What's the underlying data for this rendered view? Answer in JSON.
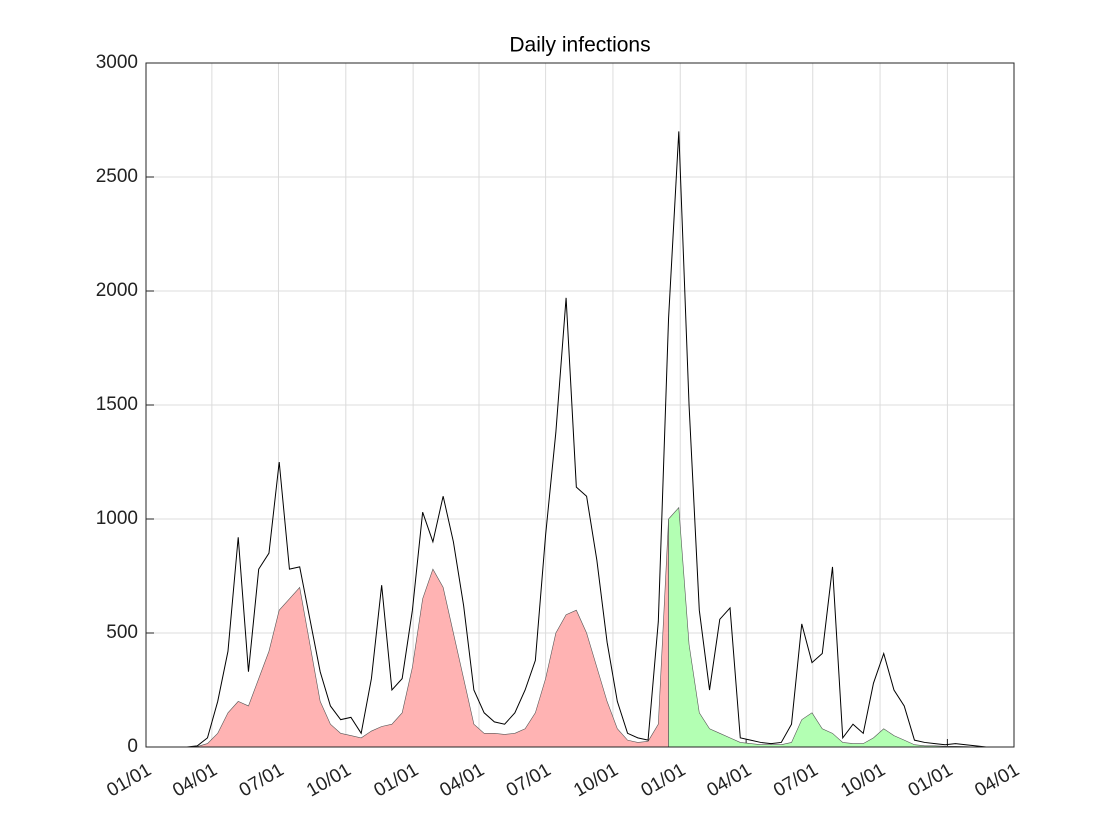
{
  "chart_data": {
    "type": "line",
    "title": "Daily infections",
    "x": [
      56,
      70,
      84,
      98,
      112,
      126,
      140,
      154,
      168,
      182,
      196,
      210,
      224,
      238,
      252,
      266,
      280,
      294,
      308,
      322,
      336,
      350,
      364,
      378,
      392,
      406,
      420,
      434,
      448,
      462,
      476,
      490,
      504,
      518,
      532,
      546,
      560,
      574,
      588,
      602,
      616,
      630,
      644,
      658,
      672,
      686,
      700,
      714,
      728,
      742,
      756,
      770,
      784,
      798,
      812,
      826,
      840,
      854,
      868,
      882,
      896,
      910,
      924,
      938,
      952,
      966,
      980,
      994,
      1008,
      1022,
      1036,
      1050,
      1064,
      1078,
      1092,
      1106,
      1120,
      1134,
      1148,
      1162,
      1176
    ],
    "series": [
      {
        "color": "#000000",
        "fill": false,
        "values": [
          0,
          5,
          40,
          200,
          420,
          920,
          330,
          780,
          850,
          1250,
          780,
          790,
          560,
          330,
          180,
          120,
          130,
          60,
          300,
          710,
          250,
          300,
          600,
          1030,
          900,
          1100,
          900,
          620,
          250,
          150,
          110,
          100,
          150,
          250,
          380,
          930,
          1380,
          1970,
          1140,
          1100,
          820,
          460,
          200,
          60,
          40,
          30,
          550,
          1880,
          2700,
          1500,
          600,
          250,
          560,
          610,
          40,
          30,
          20,
          15,
          20,
          100,
          540,
          370,
          410,
          790,
          40,
          100,
          60,
          280,
          410,
          250,
          180,
          30,
          20,
          15,
          10,
          15,
          10,
          5,
          0,
          0,
          0
        ]
      },
      {
        "color": "#ffb3b3",
        "fill": true,
        "values": [
          0,
          2,
          15,
          60,
          150,
          200,
          180,
          300,
          420,
          600,
          650,
          700,
          450,
          200,
          100,
          60,
          50,
          40,
          70,
          90,
          100,
          150,
          350,
          650,
          780,
          700,
          500,
          300,
          100,
          60,
          60,
          55,
          60,
          80,
          150,
          300,
          500,
          580,
          600,
          500,
          350,
          200,
          80,
          30,
          20,
          25,
          100,
          1000,
          null,
          null,
          null,
          null,
          null,
          null,
          null,
          null,
          null,
          null,
          null,
          null,
          null,
          null,
          null,
          null,
          null,
          null,
          null,
          null,
          null,
          null,
          null,
          null,
          null,
          null,
          null,
          null,
          null,
          null,
          null,
          null,
          null
        ]
      },
      {
        "color": "#b3ffb3",
        "fill": true,
        "values": [
          null,
          null,
          null,
          null,
          null,
          null,
          null,
          null,
          null,
          null,
          null,
          null,
          null,
          null,
          null,
          null,
          null,
          null,
          null,
          null,
          null,
          null,
          null,
          null,
          null,
          null,
          null,
          null,
          null,
          null,
          null,
          null,
          null,
          null,
          null,
          null,
          null,
          null,
          null,
          null,
          null,
          null,
          null,
          null,
          null,
          null,
          null,
          1000,
          1050,
          450,
          150,
          80,
          60,
          40,
          20,
          15,
          10,
          10,
          10,
          20,
          120,
          150,
          80,
          60,
          20,
          15,
          15,
          40,
          80,
          50,
          30,
          10,
          5,
          5,
          3,
          3,
          2,
          0,
          0,
          0,
          0
        ]
      }
    ],
    "xlim": [
      0,
      1186
    ],
    "xticks": [
      {
        "value": 0,
        "label": "01/01"
      },
      {
        "value": 90,
        "label": "04/01"
      },
      {
        "value": 181,
        "label": "07/01"
      },
      {
        "value": 273,
        "label": "10/01"
      },
      {
        "value": 365,
        "label": "01/01"
      },
      {
        "value": 455,
        "label": "04/01"
      },
      {
        "value": 546,
        "label": "07/01"
      },
      {
        "value": 638,
        "label": "10/01"
      },
      {
        "value": 730,
        "label": "01/01"
      },
      {
        "value": 820,
        "label": "04/01"
      },
      {
        "value": 911,
        "label": "07/01"
      },
      {
        "value": 1003,
        "label": "10/01"
      },
      {
        "value": 1095,
        "label": "01/01"
      },
      {
        "value": 1186,
        "label": "04/01"
      }
    ],
    "ylim": [
      0,
      3000
    ],
    "yticks": [
      0,
      500,
      1000,
      1500,
      2000,
      2500,
      3000
    ],
    "grid": true
  }
}
